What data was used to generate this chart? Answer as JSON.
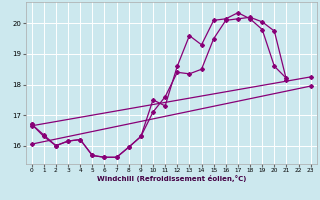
{
  "xlabel": "Windchill (Refroidissement éolien,°C)",
  "bg_color": "#cce8ee",
  "grid_color": "#ffffff",
  "line_color": "#880077",
  "xlim": [
    -0.5,
    23.5
  ],
  "ylim": [
    15.4,
    20.7
  ],
  "xticks": [
    0,
    1,
    2,
    3,
    4,
    5,
    6,
    7,
    8,
    9,
    10,
    11,
    12,
    13,
    14,
    15,
    16,
    17,
    18,
    19,
    20,
    21,
    22,
    23
  ],
  "yticks": [
    16,
    17,
    18,
    19,
    20
  ],
  "line1_x": [
    0,
    1,
    2,
    3,
    4,
    5,
    6,
    7,
    8,
    9,
    10,
    11,
    12,
    13,
    14,
    15,
    16,
    17,
    18,
    19,
    20,
    21
  ],
  "line1_y": [
    16.7,
    16.3,
    16.0,
    16.15,
    16.2,
    15.68,
    15.62,
    15.62,
    15.95,
    16.3,
    17.5,
    17.3,
    18.6,
    19.6,
    19.3,
    20.1,
    20.15,
    20.35,
    20.15,
    19.8,
    18.6,
    18.2
  ],
  "line2_x": [
    0,
    1,
    2,
    3,
    4,
    5,
    6,
    7,
    8,
    9,
    10,
    11,
    12,
    13,
    14,
    15,
    16,
    17,
    18,
    19,
    20,
    21
  ],
  "line2_y": [
    16.7,
    16.35,
    16.0,
    16.15,
    16.2,
    15.68,
    15.62,
    15.62,
    15.95,
    16.3,
    17.1,
    17.6,
    18.4,
    18.35,
    18.5,
    19.5,
    20.1,
    20.15,
    20.2,
    20.05,
    19.75,
    18.15
  ],
  "line3_x": [
    0,
    23
  ],
  "line3_y": [
    16.65,
    18.25
  ],
  "line4_x": [
    0,
    23
  ],
  "line4_y": [
    16.05,
    17.95
  ]
}
